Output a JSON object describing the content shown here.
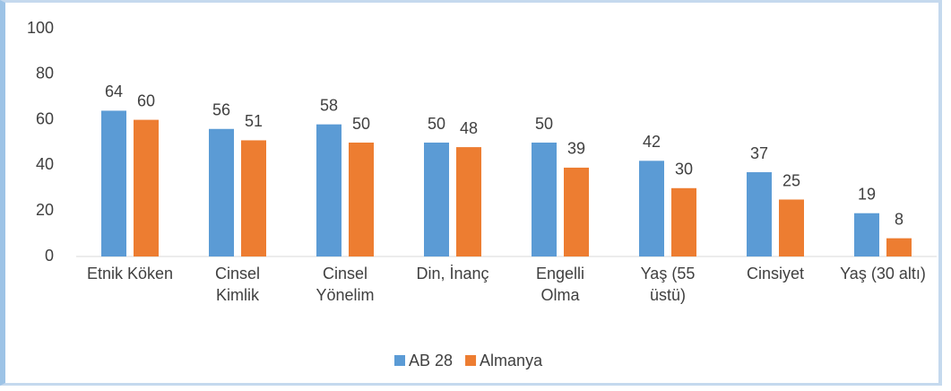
{
  "chart_data": {
    "type": "bar",
    "categories": [
      "Etnik Köken",
      "Cinsel\nKimlik",
      "Cinsel\nYönelim",
      "Din, İnanç",
      "Engelli\nOlma",
      "Yaş (55\nüstü)",
      "Cinsiyet",
      "Yaş (30 altı)"
    ],
    "series": [
      {
        "name": "AB 28",
        "color": "#5b9bd5",
        "values": [
          64,
          56,
          58,
          50,
          50,
          42,
          37,
          19
        ]
      },
      {
        "name": "Almanya",
        "color": "#ed7d31",
        "values": [
          60,
          51,
          50,
          48,
          39,
          30,
          25,
          8
        ]
      }
    ],
    "ylim": [
      0,
      100
    ],
    "yticks": [
      0,
      20,
      40,
      60,
      80,
      100
    ],
    "grid": false,
    "legend": "bottom"
  }
}
